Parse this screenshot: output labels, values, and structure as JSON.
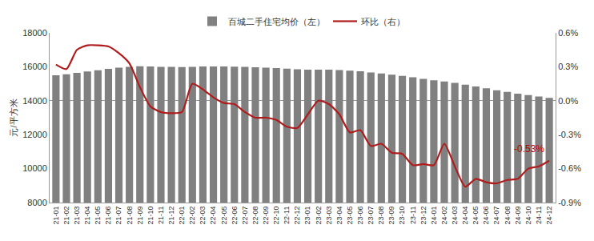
{
  "chart_data": {
    "type": "bar",
    "y_label": "元/平方米",
    "categories": [
      "21-01",
      "21-02",
      "21-03",
      "21-04",
      "21-05",
      "21-06",
      "21-07",
      "21-08",
      "21-09",
      "21-10",
      "21-11",
      "21-12",
      "22-01",
      "22-02",
      "22-03",
      "22-04",
      "22-05",
      "22-06",
      "22-07",
      "22-08",
      "22-09",
      "22-10",
      "22-11",
      "22-12",
      "23-01",
      "23-02",
      "23-03",
      "23-04",
      "23-05",
      "23-06",
      "23-07",
      "23-08",
      "23-09",
      "23-10",
      "23-11",
      "23-12",
      "24-01",
      "24-02",
      "24-03",
      "24-04",
      "24-05",
      "24-06",
      "24-07",
      "24-08",
      "24-09",
      "24-10",
      "24-11",
      "24-12"
    ],
    "series": [
      {
        "name": "百城二手住宅均价（左）",
        "type": "bar",
        "color": "#808080",
        "values": [
          15500,
          15560,
          15640,
          15720,
          15800,
          15880,
          15950,
          16000,
          16030,
          16020,
          16000,
          15990,
          15980,
          16000,
          16020,
          16020,
          16020,
          16010,
          15990,
          15970,
          15950,
          15920,
          15890,
          15850,
          15830,
          15830,
          15830,
          15810,
          15770,
          15730,
          15670,
          15610,
          15540,
          15470,
          15380,
          15290,
          15200,
          15140,
          15050,
          14940,
          14840,
          14730,
          14620,
          14520,
          14420,
          14330,
          14250,
          14170
        ]
      },
      {
        "name": "环比（右）",
        "type": "line",
        "color": "#b01c1c",
        "axis": "y2",
        "values": [
          0.32,
          0.28,
          0.45,
          0.49,
          0.49,
          0.48,
          0.42,
          0.33,
          0.12,
          -0.05,
          -0.1,
          -0.11,
          -0.1,
          0.15,
          0.1,
          0.03,
          -0.02,
          -0.03,
          -0.1,
          -0.15,
          -0.15,
          -0.17,
          -0.23,
          -0.24,
          -0.12,
          0.0,
          -0.03,
          -0.12,
          -0.28,
          -0.26,
          -0.4,
          -0.38,
          -0.46,
          -0.47,
          -0.57,
          -0.56,
          -0.57,
          -0.38,
          -0.58,
          -0.76,
          -0.69,
          -0.72,
          -0.73,
          -0.7,
          -0.69,
          -0.6,
          -0.58,
          -0.53
        ]
      }
    ],
    "ylim": [
      8000,
      18000
    ],
    "yticks": [
      8000,
      10000,
      12000,
      14000,
      16000,
      18000
    ],
    "y2lim": [
      -0.9,
      0.6
    ],
    "y2ticks": [
      {
        "value": -0.9,
        "label": "-0.9%"
      },
      {
        "value": -0.6,
        "label": "-0.6%"
      },
      {
        "value": -0.3,
        "label": "-0.3%"
      },
      {
        "value": 0,
        "label": "0.0%"
      },
      {
        "value": 0.3,
        "label": "0.3%"
      },
      {
        "value": 0.6,
        "label": "0.6%"
      }
    ],
    "annotations": [
      {
        "text": "-0.53%",
        "x": "24-12",
        "y": -0.53,
        "axis": "y2"
      }
    ],
    "grid": false,
    "legend": "top"
  }
}
